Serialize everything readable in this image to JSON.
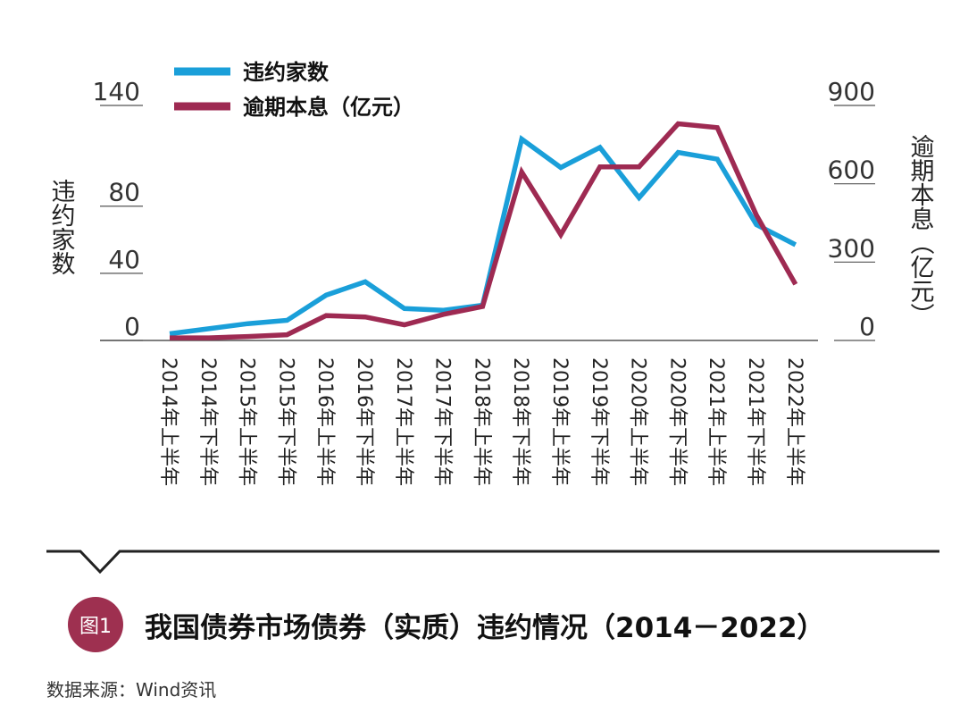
{
  "chart_data": {
    "type": "line",
    "categories": [
      "2014年上半年",
      "2014年下半年",
      "2015年上半年",
      "2015年下半年",
      "2016年上半年",
      "2016年下半年",
      "2017年上半年",
      "2017年下半年",
      "2018年上半年",
      "2018年下半年",
      "2019年上半年",
      "2019年下半年",
      "2020年上半年",
      "2020年下半年",
      "2021年上半年",
      "2021年下半年",
      "2022年上半年"
    ],
    "series": [
      {
        "name": "违约家数",
        "axis": "left",
        "color": "#1a9fd9",
        "values": [
          4,
          7,
          10,
          12,
          27,
          35,
          19,
          18,
          21,
          120,
          103,
          115,
          85,
          112,
          108,
          69,
          57
        ]
      },
      {
        "name": "逾期本息（亿元）",
        "axis": "right",
        "color": "#9e2a52",
        "values": [
          10,
          10,
          15,
          22,
          95,
          90,
          60,
          100,
          130,
          645,
          405,
          665,
          665,
          830,
          815,
          480,
          215
        ]
      }
    ],
    "y_left": {
      "label": "违约家数",
      "ticks": [
        0,
        40,
        80,
        140
      ],
      "range": [
        0,
        140
      ]
    },
    "y_right": {
      "label": "逾期本息（亿元）",
      "ticks": [
        0,
        300,
        600,
        900
      ],
      "range": [
        0,
        900
      ]
    },
    "legend_placement": "top-left",
    "grid": false
  },
  "caption": {
    "badge": "图1",
    "title": "我国债券市场债券（实质）违约情况（2014－2022）"
  },
  "source": "数据来源：Wind资讯"
}
